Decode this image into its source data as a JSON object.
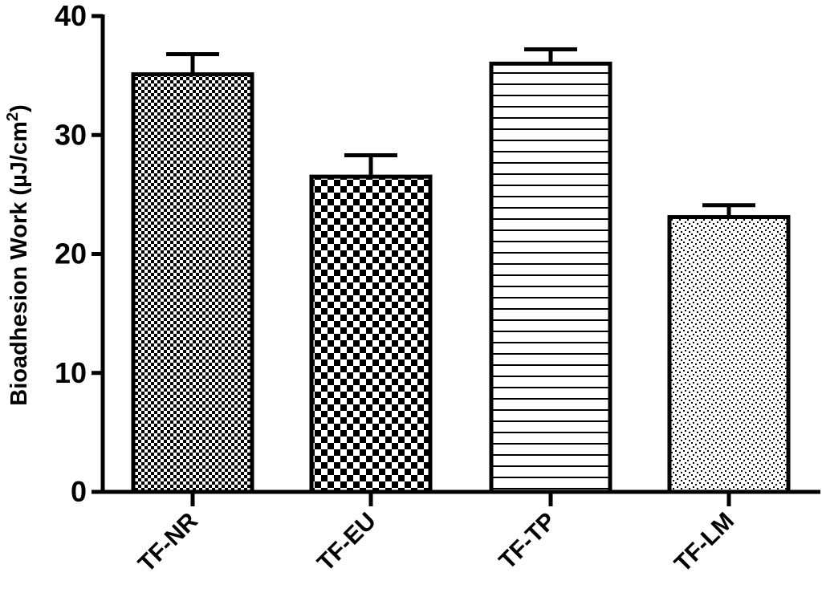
{
  "chart_data": {
    "type": "bar",
    "title": "",
    "xlabel": "",
    "ylabel": "Bioadhesion Work (µJ/cm²)",
    "ylabel_parts": {
      "main": "Bioadhesion Work (µJ/cm",
      "sup": "2",
      "close": ")"
    },
    "ylim": [
      0,
      40
    ],
    "yticks": [
      0,
      10,
      20,
      30,
      40
    ],
    "ytick_labels": [
      "0",
      "10",
      "20",
      "30",
      "40"
    ],
    "categories": [
      "TF-NR",
      "TF-EU",
      "TF-TP",
      "TF-LM"
    ],
    "values": [
      35.1,
      26.5,
      36.0,
      23.1
    ],
    "errors": [
      1.7,
      1.8,
      1.2,
      1.0
    ],
    "patterns": [
      "fine-checker",
      "coarse-checker",
      "horizontal-lines",
      "dots"
    ],
    "grid": false,
    "legend": "none",
    "colors": {
      "bar_stroke": "#000000",
      "bar_fill_bg": "#ffffff",
      "pattern_ink": "#000000"
    }
  }
}
